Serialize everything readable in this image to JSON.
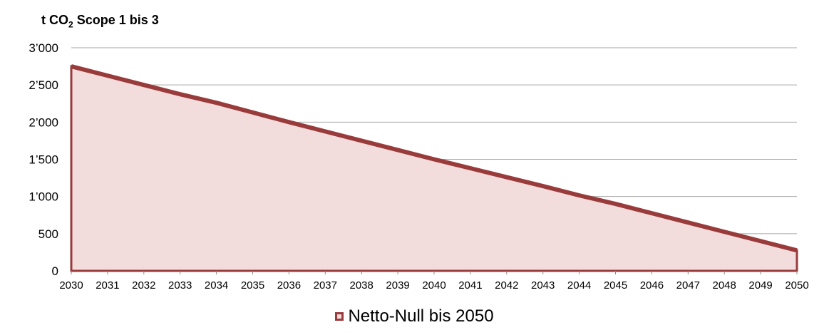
{
  "chart_data": {
    "type": "area",
    "ylabel": {
      "prefix": "t CO",
      "sub": "2",
      "suffix": " Scope 1 bis 3"
    },
    "x": [
      "2030",
      "2031",
      "2032",
      "2033",
      "2034",
      "2035",
      "2036",
      "2037",
      "2038",
      "2039",
      "2040",
      "2041",
      "2042",
      "2043",
      "2044",
      "2045",
      "2046",
      "2047",
      "2048",
      "2049",
      "2050"
    ],
    "ylim": [
      0,
      3000
    ],
    "y_ticks": [
      0,
      500,
      1000,
      1500,
      2000,
      2500,
      3000
    ],
    "y_tick_labels": [
      "0",
      "500",
      "1’000",
      "1’500",
      "2’000",
      "2’500",
      "3’000"
    ],
    "series": [
      {
        "name": "Netto-Null bis 2050",
        "values": [
          2750,
          2625,
          2500,
          2375,
          2260,
          2130,
          2000,
          1875,
          1750,
          1625,
          1500,
          1380,
          1260,
          1140,
          1015,
          900,
          775,
          650,
          525,
          400,
          275
        ],
        "color": "#9a3b3b",
        "fill": "#f2dcdc"
      }
    ],
    "grid": true,
    "legend": "bottom-center"
  }
}
